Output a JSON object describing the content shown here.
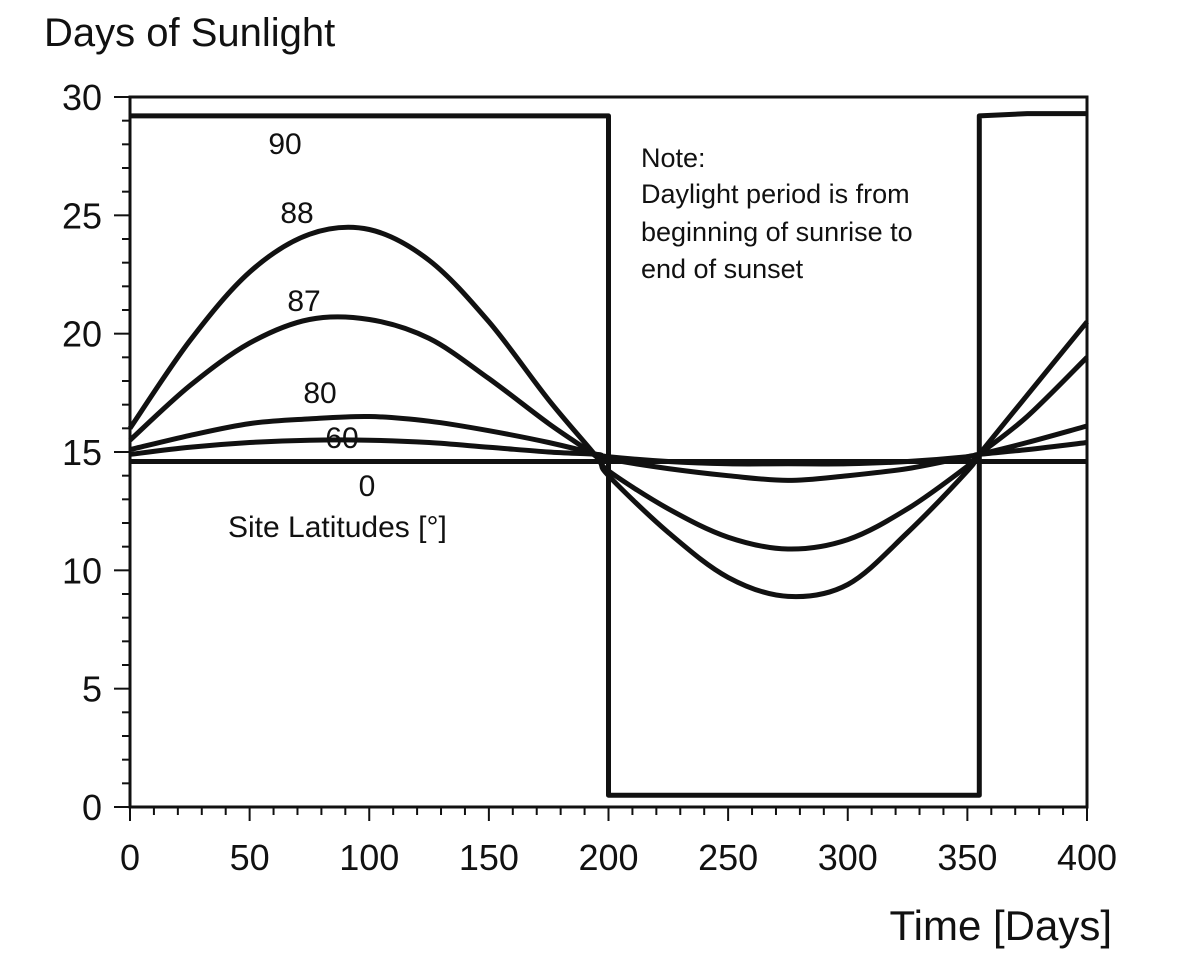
{
  "chart_data": {
    "type": "line",
    "title": "Days of Sunlight",
    "xlabel": "Time [Days]",
    "ylabel": "",
    "xlim": [
      0,
      400
    ],
    "ylim": [
      0,
      30
    ],
    "x_ticks": [
      "0",
      "50",
      "100",
      "150",
      "200",
      "250",
      "300",
      "350",
      "400"
    ],
    "y_ticks": [
      "0",
      "5",
      "10",
      "15",
      "20",
      "25",
      "30"
    ],
    "grid": false,
    "legend": "inline labels",
    "x": [
      0,
      25,
      50,
      75,
      100,
      125,
      150,
      175,
      195,
      200,
      225,
      250,
      275,
      300,
      325,
      350,
      355,
      375,
      400
    ],
    "series": [
      {
        "name": "90",
        "values": [
          29.2,
          29.2,
          29.2,
          29.2,
          29.2,
          29.2,
          29.2,
          29.2,
          29.2,
          0.5,
          0.5,
          0.5,
          0.5,
          0.5,
          0.5,
          0.5,
          29.2,
          29.3,
          29.3
        ]
      },
      {
        "name": "88",
        "values": [
          16.0,
          19.7,
          22.6,
          24.2,
          24.4,
          23.1,
          20.5,
          17.2,
          14.8,
          14.0,
          11.6,
          9.7,
          8.9,
          9.4,
          11.6,
          14.2,
          14.9,
          17.4,
          20.5
        ]
      },
      {
        "name": "87",
        "values": [
          15.5,
          17.8,
          19.6,
          20.6,
          20.6,
          19.8,
          18.1,
          16.2,
          14.8,
          14.2,
          12.6,
          11.4,
          10.9,
          11.3,
          12.6,
          14.4,
          14.9,
          16.5,
          19.0
        ]
      },
      {
        "name": "80",
        "values": [
          15.1,
          15.7,
          16.2,
          16.4,
          16.5,
          16.3,
          15.9,
          15.4,
          14.9,
          14.7,
          14.3,
          14.0,
          13.8,
          14.0,
          14.3,
          14.8,
          14.9,
          15.4,
          16.1
        ]
      },
      {
        "name": "60",
        "values": [
          14.9,
          15.2,
          15.4,
          15.5,
          15.5,
          15.4,
          15.2,
          15.0,
          14.9,
          14.8,
          14.6,
          14.5,
          14.5,
          14.5,
          14.6,
          14.8,
          14.9,
          15.1,
          15.4
        ]
      },
      {
        "name": "0",
        "values": [
          14.6,
          14.6,
          14.6,
          14.6,
          14.6,
          14.6,
          14.6,
          14.6,
          14.6,
          14.6,
          14.6,
          14.6,
          14.6,
          14.6,
          14.6,
          14.6,
          14.6,
          14.6,
          14.6
        ]
      }
    ],
    "annotations": {
      "caption": "Site Latitudes [°]",
      "note_lines": [
        "Note:",
        "Daylight period is from",
        "beginning of sunrise to",
        "end of sunset"
      ]
    },
    "line_color": "#111111"
  }
}
